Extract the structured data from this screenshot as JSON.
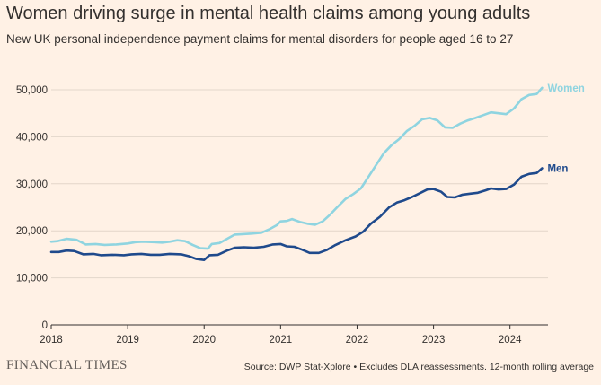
{
  "chart_data": {
    "type": "line",
    "title": "Women driving surge in mental health claims among young adults",
    "subtitle": "New UK personal independence payment claims for mental disorders for people aged 16 to 27",
    "xlabel": "",
    "ylabel": "",
    "xlim": [
      2018,
      2024.45
    ],
    "ylim": [
      0,
      50000
    ],
    "x_ticks": [
      {
        "value": 2018,
        "label": "2018"
      },
      {
        "value": 2019,
        "label": "2019"
      },
      {
        "value": 2020,
        "label": "2020"
      },
      {
        "value": 2021,
        "label": "2021"
      },
      {
        "value": 2022,
        "label": "2022"
      },
      {
        "value": 2023,
        "label": "2023"
      },
      {
        "value": 2024,
        "label": "2024"
      }
    ],
    "y_ticks": [
      {
        "value": 0,
        "label": "0"
      },
      {
        "value": 10000,
        "label": "10,000"
      },
      {
        "value": 20000,
        "label": "20,000"
      },
      {
        "value": 30000,
        "label": "30,000"
      },
      {
        "value": 40000,
        "label": "40,000"
      },
      {
        "value": 50000,
        "label": "50,000"
      }
    ],
    "grid": true,
    "series": [
      {
        "name": "Women",
        "color": "#8fd4e0",
        "points": [
          [
            2018.0,
            17700
          ],
          [
            2018.08,
            17800
          ],
          [
            2018.2,
            18300
          ],
          [
            2018.33,
            18100
          ],
          [
            2018.45,
            17100
          ],
          [
            2018.58,
            17200
          ],
          [
            2018.7,
            17000
          ],
          [
            2018.85,
            17100
          ],
          [
            2019.0,
            17300
          ],
          [
            2019.1,
            17600
          ],
          [
            2019.2,
            17700
          ],
          [
            2019.35,
            17600
          ],
          [
            2019.45,
            17500
          ],
          [
            2019.55,
            17700
          ],
          [
            2019.65,
            18000
          ],
          [
            2019.75,
            17800
          ],
          [
            2019.85,
            17000
          ],
          [
            2019.95,
            16300
          ],
          [
            2020.05,
            16200
          ],
          [
            2020.1,
            17200
          ],
          [
            2020.2,
            17400
          ],
          [
            2020.3,
            18300
          ],
          [
            2020.4,
            19200
          ],
          [
            2020.5,
            19300
          ],
          [
            2020.62,
            19400
          ],
          [
            2020.75,
            19600
          ],
          [
            2020.85,
            20300
          ],
          [
            2020.95,
            21200
          ],
          [
            2021.0,
            22000
          ],
          [
            2021.08,
            22100
          ],
          [
            2021.15,
            22500
          ],
          [
            2021.25,
            21900
          ],
          [
            2021.35,
            21500
          ],
          [
            2021.45,
            21300
          ],
          [
            2021.55,
            22000
          ],
          [
            2021.65,
            23500
          ],
          [
            2021.75,
            25200
          ],
          [
            2021.85,
            26800
          ],
          [
            2021.95,
            27800
          ],
          [
            2022.05,
            29000
          ],
          [
            2022.15,
            31500
          ],
          [
            2022.25,
            34000
          ],
          [
            2022.35,
            36500
          ],
          [
            2022.45,
            38200
          ],
          [
            2022.55,
            39500
          ],
          [
            2022.65,
            41200
          ],
          [
            2022.75,
            42300
          ],
          [
            2022.85,
            43700
          ],
          [
            2022.95,
            44000
          ],
          [
            2023.05,
            43500
          ],
          [
            2023.15,
            42000
          ],
          [
            2023.25,
            41900
          ],
          [
            2023.35,
            42800
          ],
          [
            2023.45,
            43500
          ],
          [
            2023.55,
            44000
          ],
          [
            2023.65,
            44600
          ],
          [
            2023.75,
            45200
          ],
          [
            2023.85,
            45000
          ],
          [
            2023.95,
            44800
          ],
          [
            2024.05,
            46000
          ],
          [
            2024.15,
            48000
          ],
          [
            2024.25,
            48900
          ],
          [
            2024.35,
            49100
          ],
          [
            2024.42,
            50400
          ]
        ]
      },
      {
        "name": "Men",
        "color": "#1f4a8c",
        "points": [
          [
            2018.0,
            15500
          ],
          [
            2018.1,
            15500
          ],
          [
            2018.2,
            15800
          ],
          [
            2018.3,
            15700
          ],
          [
            2018.42,
            15000
          ],
          [
            2018.55,
            15100
          ],
          [
            2018.65,
            14800
          ],
          [
            2018.8,
            14900
          ],
          [
            2018.95,
            14800
          ],
          [
            2019.05,
            15000
          ],
          [
            2019.18,
            15100
          ],
          [
            2019.3,
            14900
          ],
          [
            2019.42,
            14900
          ],
          [
            2019.55,
            15100
          ],
          [
            2019.7,
            15000
          ],
          [
            2019.8,
            14600
          ],
          [
            2019.9,
            14000
          ],
          [
            2020.0,
            13800
          ],
          [
            2020.07,
            14800
          ],
          [
            2020.18,
            14900
          ],
          [
            2020.3,
            15800
          ],
          [
            2020.4,
            16400
          ],
          [
            2020.52,
            16500
          ],
          [
            2020.65,
            16400
          ],
          [
            2020.78,
            16600
          ],
          [
            2020.9,
            17100
          ],
          [
            2021.0,
            17200
          ],
          [
            2021.08,
            16700
          ],
          [
            2021.18,
            16600
          ],
          [
            2021.28,
            16000
          ],
          [
            2021.38,
            15300
          ],
          [
            2021.5,
            15300
          ],
          [
            2021.6,
            15900
          ],
          [
            2021.72,
            17000
          ],
          [
            2021.85,
            18000
          ],
          [
            2021.98,
            18800
          ],
          [
            2022.08,
            19800
          ],
          [
            2022.18,
            21500
          ],
          [
            2022.3,
            23000
          ],
          [
            2022.42,
            25000
          ],
          [
            2022.52,
            26000
          ],
          [
            2022.62,
            26500
          ],
          [
            2022.72,
            27200
          ],
          [
            2022.82,
            28000
          ],
          [
            2022.92,
            28800
          ],
          [
            2023.0,
            28900
          ],
          [
            2023.1,
            28300
          ],
          [
            2023.18,
            27200
          ],
          [
            2023.28,
            27100
          ],
          [
            2023.38,
            27700
          ],
          [
            2023.48,
            27900
          ],
          [
            2023.58,
            28100
          ],
          [
            2023.68,
            28600
          ],
          [
            2023.75,
            29000
          ],
          [
            2023.85,
            28800
          ],
          [
            2023.95,
            28900
          ],
          [
            2024.05,
            29800
          ],
          [
            2024.15,
            31500
          ],
          [
            2024.25,
            32100
          ],
          [
            2024.35,
            32300
          ],
          [
            2024.42,
            33300
          ]
        ]
      }
    ],
    "annotations": [
      {
        "text": "Women",
        "series": "Women"
      },
      {
        "text": "Men",
        "series": "Men"
      }
    ]
  },
  "footer": {
    "brand": "FINANCIAL TIMES",
    "source": "Source: DWP Stat-Xplore • Excludes DLA reassessments. 12-month rolling average"
  }
}
